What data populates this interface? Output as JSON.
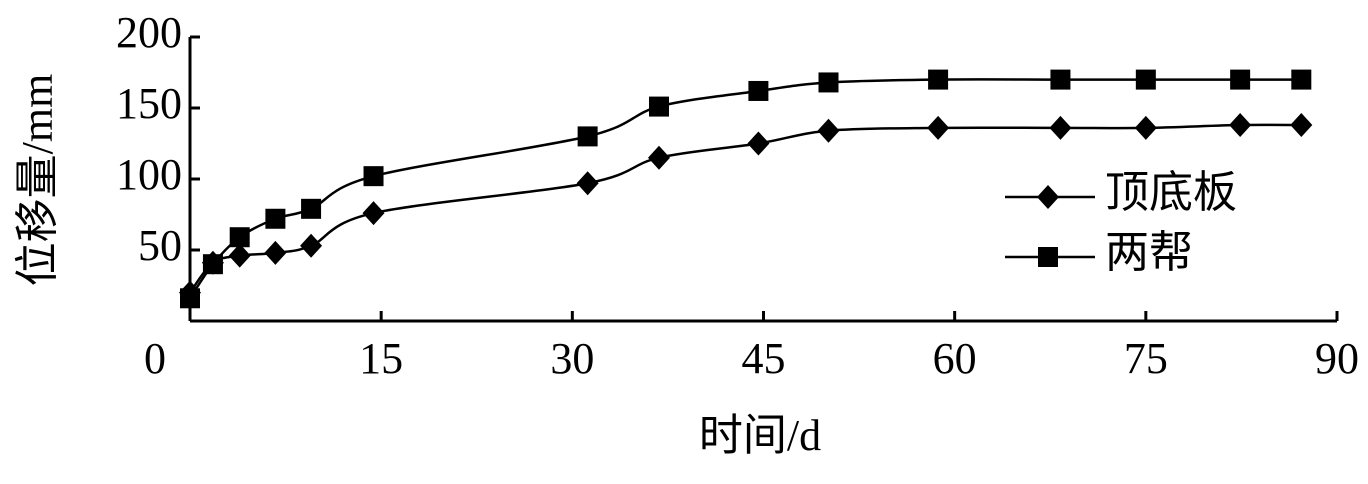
{
  "chart_data": {
    "type": "line",
    "x_label": "时间/d",
    "y_label": "位移量/mm",
    "xlim": [
      0,
      90
    ],
    "xticks": [
      0,
      15,
      30,
      45,
      60,
      75,
      90
    ],
    "ylim": [
      0,
      200
    ],
    "yticks": [
      50,
      100,
      150,
      200
    ],
    "legend": "right",
    "series": [
      {
        "name": "顶底板",
        "color": "#000000",
        "marker": "diamond",
        "x": [
          0,
          1.8,
          3.9,
          6.7,
          9.5,
          14.4,
          31.2,
          36.8,
          44.6,
          50.1,
          58.7,
          68.3,
          75.0,
          82.4,
          87.2
        ],
        "values": [
          20,
          41,
          46,
          48,
          53,
          76,
          97,
          115,
          125,
          134,
          136,
          136,
          136,
          138,
          138
        ]
      },
      {
        "name": "两帮",
        "color": "#000000",
        "marker": "square",
        "x": [
          0,
          1.8,
          3.9,
          6.7,
          9.5,
          14.4,
          31.2,
          36.8,
          44.6,
          50.1,
          58.7,
          68.3,
          75.0,
          82.4,
          87.2
        ],
        "values": [
          16,
          40,
          59,
          72,
          79,
          102,
          130,
          151,
          162,
          168,
          170,
          170,
          170,
          170,
          170
        ]
      }
    ]
  }
}
